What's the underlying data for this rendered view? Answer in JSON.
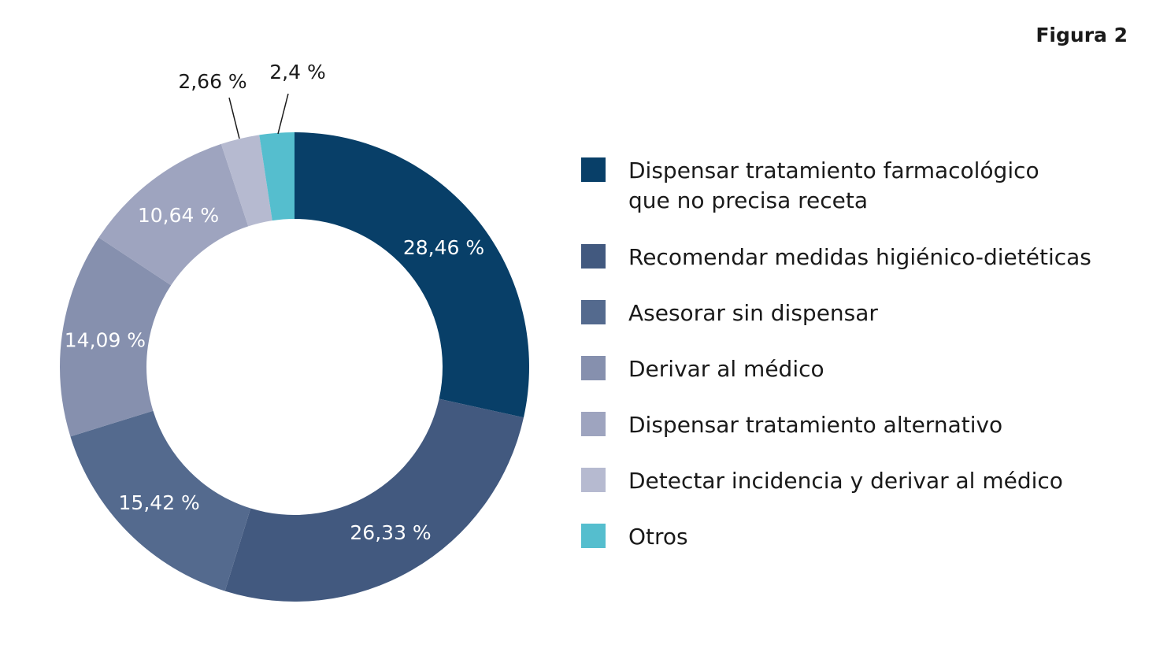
{
  "figure_label": "Figura 2",
  "chart_data": {
    "type": "pie",
    "variant": "donut",
    "title": "",
    "start": "top, clockwise",
    "slices": [
      {
        "label": "Dispensar tratamiento farmacológico que no precisa receta",
        "legend_lines": [
          "Dispensar tratamiento farmacológico",
          "que no precisa receta"
        ],
        "value": 28.46,
        "display": "28,46 %",
        "color": "#083F68",
        "label_placement": "inside"
      },
      {
        "label": "Recomendar medidas higiénico-dietéticas",
        "legend_lines": [
          "Recomendar medidas higiénico-dietéticas"
        ],
        "value": 26.33,
        "display": "26,33 %",
        "color": "#42597F",
        "label_placement": "inside"
      },
      {
        "label": "Asesorar sin dispensar",
        "legend_lines": [
          "Asesorar sin dispensar"
        ],
        "value": 15.42,
        "display": "15,42 %",
        "color": "#546A8E",
        "label_placement": "inside"
      },
      {
        "label": "Derivar al médico",
        "legend_lines": [
          "Derivar al médico"
        ],
        "value": 14.09,
        "display": "14,09 %",
        "color": "#8690AE",
        "label_placement": "inside"
      },
      {
        "label": "Dispensar tratamiento alternativo",
        "legend_lines": [
          "Dispensar tratamiento alternativo"
        ],
        "value": 10.64,
        "display": "10,64 %",
        "color": "#9EA4BF",
        "label_placement": "inside"
      },
      {
        "label": "Detectar incidencia y derivar al médico",
        "legend_lines": [
          "Detectar incidencia y derivar al médico"
        ],
        "value": 2.66,
        "display": "2,66 %",
        "color": "#B6BAD0",
        "label_placement": "outside"
      },
      {
        "label": "Otros",
        "legend_lines": [
          "Otros"
        ],
        "value": 2.4,
        "display": "2,4 %",
        "color": "#55BECE",
        "label_placement": "outside"
      }
    ],
    "legend_position": "right"
  }
}
